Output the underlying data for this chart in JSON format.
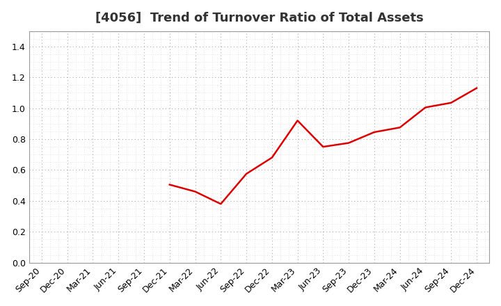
{
  "title": "[4056]  Trend of Turnover Ratio of Total Assets",
  "x_labels": [
    "Sep-20",
    "Dec-20",
    "Mar-21",
    "Jun-21",
    "Sep-21",
    "Dec-21",
    "Mar-22",
    "Jun-22",
    "Sep-22",
    "Dec-22",
    "Mar-23",
    "Jun-23",
    "Sep-23",
    "Dec-23",
    "Mar-24",
    "Jun-24",
    "Sep-24",
    "Dec-24"
  ],
  "y_values": [
    null,
    null,
    null,
    null,
    null,
    0.505,
    0.46,
    0.38,
    0.575,
    0.68,
    0.92,
    0.75,
    0.775,
    0.845,
    0.875,
    1.005,
    1.035,
    1.13
  ],
  "line_color": "#dd0000",
  "ylim": [
    0.0,
    1.5
  ],
  "yticks": [
    0.0,
    0.2,
    0.4,
    0.6,
    0.8,
    1.0,
    1.2,
    1.4
  ],
  "background_color": "#ffffff",
  "plot_bg_color": "#ffffff",
  "major_grid_color": "#aaaaaa",
  "minor_grid_color": "#cccccc",
  "title_fontsize": 13,
  "axis_fontsize": 9,
  "title_color": "#333333"
}
